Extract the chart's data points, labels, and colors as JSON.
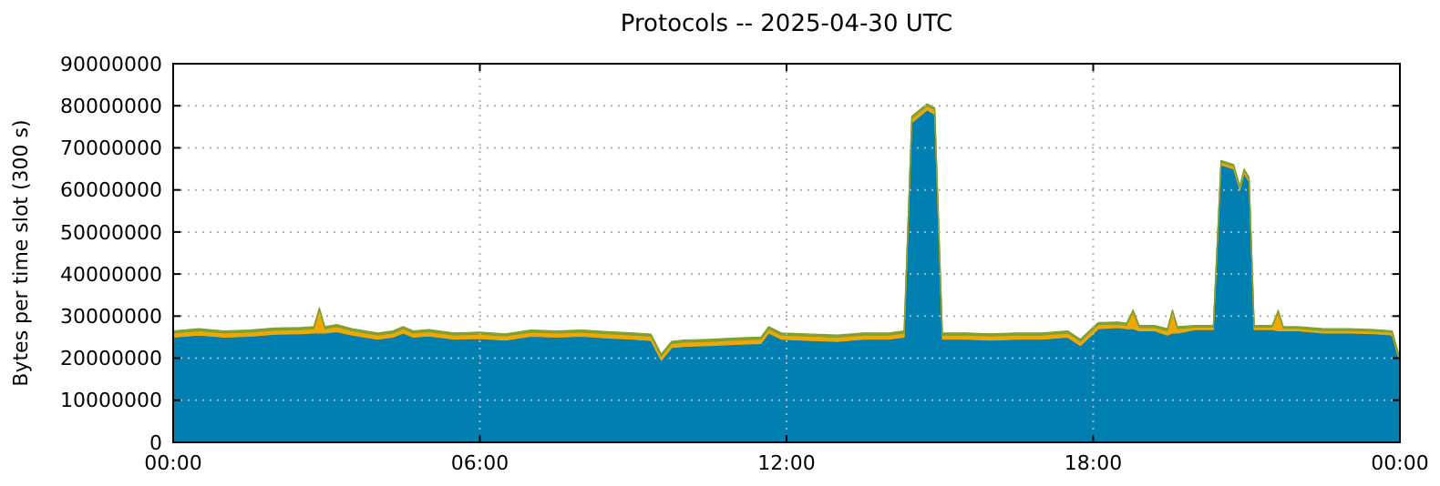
{
  "chart_data": {
    "type": "area",
    "stacked": true,
    "title": "Protocols -- 2025-04-30 UTC",
    "ylabel": "Bytes per time slot (300 s)",
    "x": [
      0,
      0.5,
      1,
      1.5,
      2,
      2.5,
      2.75,
      2.86,
      2.97,
      3.2,
      3.5,
      4,
      4.3,
      4.5,
      4.7,
      5,
      5.5,
      6,
      6.5,
      7,
      7.5,
      8,
      8.5,
      9,
      9.35,
      9.55,
      9.75,
      10,
      10.5,
      11,
      11.5,
      11.65,
      11.9,
      12.5,
      13,
      13.5,
      14,
      14.3,
      14.45,
      14.75,
      14.9,
      15.05,
      15.5,
      16,
      16.5,
      17,
      17.5,
      17.75,
      18.1,
      18.5,
      18.65,
      18.78,
      18.9,
      19.2,
      19.45,
      19.55,
      19.65,
      20,
      20.35,
      20.5,
      20.75,
      20.87,
      20.95,
      21.05,
      21.15,
      21.5,
      21.62,
      21.72,
      22,
      22.5,
      23,
      23.5,
      23.85,
      24
    ],
    "series": [
      {
        "color": "#0080b0",
        "values": [
          25000000,
          25500000,
          25000000,
          25200000,
          25700000,
          25800000,
          26000000,
          26000000,
          26000000,
          26300000,
          25500000,
          24500000,
          25000000,
          26000000,
          25000000,
          25300000,
          24500000,
          24700000,
          24300000,
          25200000,
          25000000,
          25200000,
          24800000,
          24500000,
          24200000,
          19500000,
          22500000,
          22800000,
          23000000,
          23300000,
          23500000,
          26000000,
          24500000,
          24200000,
          24000000,
          24500000,
          24500000,
          25000000,
          76000000,
          79000000,
          78000000,
          24500000,
          24500000,
          24300000,
          24500000,
          24500000,
          25000000,
          23000000,
          27000000,
          27300000,
          27000000,
          27000000,
          26500000,
          26500000,
          25500000,
          26000000,
          26000000,
          26800000,
          26800000,
          66000000,
          65000000,
          60000000,
          64000000,
          62000000,
          26800000,
          26800000,
          26500000,
          26500000,
          26500000,
          26000000,
          26000000,
          25800000,
          25500000,
          19000000
        ]
      },
      {
        "color": "#f0a800",
        "values": [
          1000000,
          1000000,
          1000000,
          1000000,
          1000000,
          1000000,
          1000000,
          5500000,
          1000000,
          1200000,
          1000000,
          1000000,
          1000000,
          1000000,
          1000000,
          1000000,
          1000000,
          1000000,
          1000000,
          1000000,
          1000000,
          1000000,
          1000000,
          1000000,
          1000000,
          1000000,
          1000000,
          1000000,
          1000000,
          1000000,
          1000000,
          1000000,
          1000000,
          1000000,
          1000000,
          1000000,
          1000000,
          1000000,
          1000000,
          1000000,
          1000000,
          1000000,
          1000000,
          1000000,
          1000000,
          1000000,
          1000000,
          1000000,
          1000000,
          800000,
          800000,
          4000000,
          800000,
          800000,
          1000000,
          5000000,
          1000000,
          600000,
          600000,
          600000,
          600000,
          600000,
          600000,
          600000,
          600000,
          600000,
          4500000,
          600000,
          600000,
          600000,
          600000,
          600000,
          600000,
          600000
        ]
      },
      {
        "color": "#80a030",
        "values": [
          500000,
          500000,
          500000,
          500000,
          500000,
          500000,
          500000,
          500000,
          500000,
          500000,
          500000,
          500000,
          500000,
          500000,
          500000,
          500000,
          500000,
          500000,
          500000,
          500000,
          500000,
          500000,
          500000,
          500000,
          500000,
          500000,
          500000,
          500000,
          500000,
          500000,
          500000,
          500000,
          500000,
          500000,
          500000,
          500000,
          500000,
          500000,
          500000,
          500000,
          500000,
          500000,
          500000,
          500000,
          500000,
          500000,
          500000,
          500000,
          500000,
          500000,
          500000,
          500000,
          500000,
          500000,
          500000,
          500000,
          500000,
          400000,
          400000,
          400000,
          400000,
          400000,
          400000,
          400000,
          400000,
          400000,
          400000,
          400000,
          400000,
          400000,
          400000,
          400000,
          400000,
          400000
        ]
      }
    ],
    "xlim": [
      0,
      24
    ],
    "xticks": [
      {
        "value": 0,
        "label": "00:00"
      },
      {
        "value": 6,
        "label": "06:00"
      },
      {
        "value": 12,
        "label": "12:00"
      },
      {
        "value": 18,
        "label": "18:00"
      },
      {
        "value": 24,
        "label": "00:00"
      }
    ],
    "ylim": [
      0,
      90000000
    ],
    "yticks": [
      0,
      10000000,
      20000000,
      30000000,
      40000000,
      50000000,
      60000000,
      70000000,
      80000000,
      90000000
    ],
    "grid": true
  }
}
